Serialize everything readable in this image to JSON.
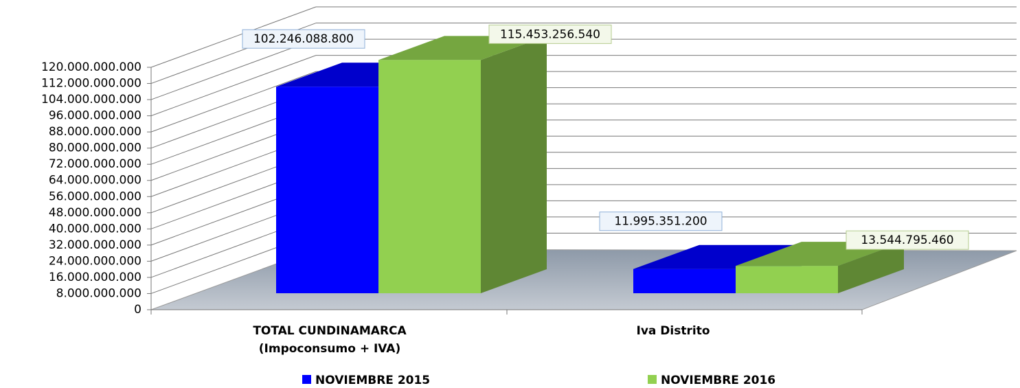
{
  "chart_data": {
    "type": "bar3d",
    "categories": [
      "TOTAL CUNDINAMARCA (Impoconsumo + IVA)",
      "Iva Distrito"
    ],
    "series": [
      {
        "name": "NOVIEMBRE 2015",
        "color": "#0000ff",
        "values": [
          102246088800,
          11995351200
        ],
        "value_labels": [
          "102.246.088.800",
          "11.995.351.200"
        ]
      },
      {
        "name": "NOVIEMBRE 2016",
        "color": "#92d050",
        "values": [
          115453256540,
          13544795460
        ],
        "value_labels": [
          "115.453.256.540",
          "13.544.795.460"
        ]
      }
    ],
    "ylim": [
      0,
      120000000000
    ],
    "yticks": [
      0,
      {
        "value": 8000000000,
        "label": "8.000.000.000"
      },
      {
        "value": 16000000000,
        "label": "16.000.000.000"
      },
      {
        "value": 24000000000,
        "label": "24.000.000.000"
      },
      {
        "value": 32000000000,
        "label": "32.000.000.000"
      },
      {
        "value": 40000000000,
        "label": "40.000.000.000"
      },
      {
        "value": 48000000000,
        "label": "48.000.000.000"
      },
      {
        "value": 56000000000,
        "label": "56.000.000.000"
      },
      {
        "value": 64000000000,
        "label": "64.000.000.000"
      },
      {
        "value": 72000000000,
        "label": "72.000.000.000"
      },
      {
        "value": 80000000000,
        "label": "80.000.000.000"
      },
      {
        "value": 88000000000,
        "label": "88.000.000.000"
      },
      {
        "value": 96000000000,
        "label": "96.000.000.000"
      },
      {
        "value": 104000000000,
        "label": "104.000.000.000"
      },
      {
        "value": 112000000000,
        "label": "112.000.000.000"
      },
      {
        "value": 120000000000,
        "label": "120.000.000.000"
      }
    ],
    "grid": true,
    "legend": "bottom"
  }
}
